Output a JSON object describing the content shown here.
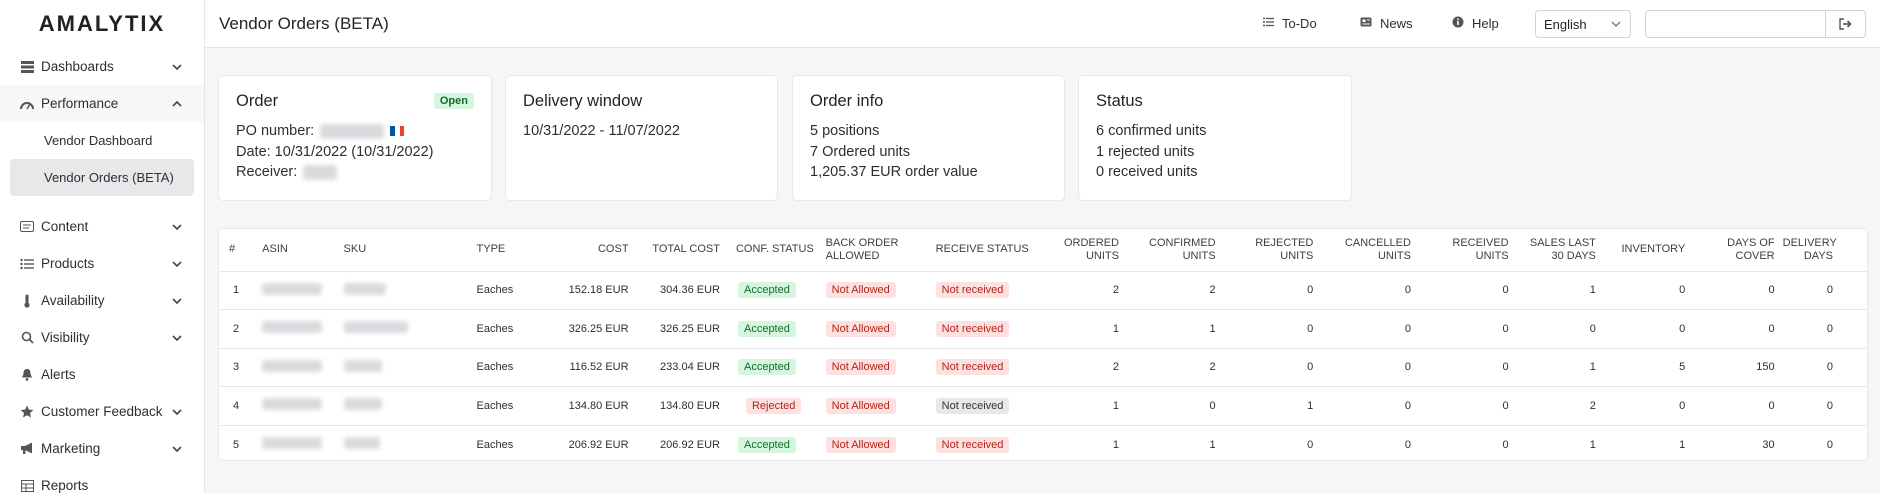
{
  "app": {
    "logo": "AMALYTIX"
  },
  "sidebar": {
    "items": [
      {
        "label": "Dashboards",
        "icon": "dashboard-icon",
        "expandable": true
      },
      {
        "label": "Performance",
        "icon": "gauge-icon",
        "expandable": true,
        "expanded": true,
        "children": [
          {
            "label": "Vendor Dashboard"
          },
          {
            "label": "Vendor Orders (BETA)",
            "active": true
          }
        ]
      },
      {
        "label": "Content",
        "icon": "content-icon",
        "expandable": true
      },
      {
        "label": "Products",
        "icon": "list-icon",
        "expandable": true
      },
      {
        "label": "Availability",
        "icon": "thermometer-icon",
        "expandable": true
      },
      {
        "label": "Visibility",
        "icon": "search-icon",
        "expandable": true
      },
      {
        "label": "Alerts",
        "icon": "bell-icon",
        "expandable": false
      },
      {
        "label": "Customer Feedback",
        "icon": "star-icon",
        "expandable": true
      },
      {
        "label": "Marketing",
        "icon": "megaphone-icon",
        "expandable": true
      },
      {
        "label": "Reports",
        "icon": "table-icon",
        "expandable": false
      }
    ]
  },
  "header": {
    "title": "Vendor Orders (BETA)",
    "todo_label": "To-Do",
    "news_label": "News",
    "help_label": "Help",
    "language": "English",
    "search_value": ""
  },
  "cards": {
    "order": {
      "title": "Order",
      "status": "Open",
      "po_label": "PO number:",
      "date_line": "Date: 10/31/2022 (10/31/2022)",
      "receiver_label": "Receiver:"
    },
    "delivery": {
      "title": "Delivery window",
      "window": "10/31/2022 - 11/07/2022"
    },
    "info": {
      "title": "Order info",
      "positions": "5 positions",
      "ordered": "7 Ordered units",
      "value": "1,205.37 EUR order value"
    },
    "status": {
      "title": "Status",
      "confirmed": "6 confirmed units",
      "rejected": "1 rejected units",
      "received": "0 received units"
    }
  },
  "table": {
    "headers": [
      "#",
      "ASIN",
      "SKU",
      "TYPE",
      "COST",
      "TOTAL COST",
      "CONF. STATUS",
      "BACK ORDER ALLOWED",
      "RECEIVE STATUS",
      "ORDERED UNITS",
      "CONFIRMED UNITS",
      "REJECTED UNITS",
      "CANCELLED UNITS",
      "RECEIVED UNITS",
      "SALES LAST 30 DAYS",
      "INVENTORY",
      "DAYS OF COVER",
      "DELIVERY DAYS"
    ],
    "rows": [
      {
        "n": "1",
        "type": "Eaches",
        "cost": "152.18 EUR",
        "total": "304.36 EUR",
        "conf": "Accepted",
        "back": "Not Allowed",
        "recv": "Not received",
        "ordered": "2",
        "confirmed": "2",
        "rejected": "0",
        "cancelled": "0",
        "received": "0",
        "sales": "1",
        "inventory": "0",
        "cover": "0",
        "delivery": "0"
      },
      {
        "n": "2",
        "type": "Eaches",
        "cost": "326.25 EUR",
        "total": "326.25 EUR",
        "conf": "Accepted",
        "back": "Not Allowed",
        "recv": "Not received",
        "ordered": "1",
        "confirmed": "1",
        "rejected": "0",
        "cancelled": "0",
        "received": "0",
        "sales": "0",
        "inventory": "0",
        "cover": "0",
        "delivery": "0"
      },
      {
        "n": "3",
        "type": "Eaches",
        "cost": "116.52 EUR",
        "total": "233.04 EUR",
        "conf": "Accepted",
        "back": "Not Allowed",
        "recv": "Not received",
        "ordered": "2",
        "confirmed": "2",
        "rejected": "0",
        "cancelled": "0",
        "received": "0",
        "sales": "1",
        "inventory": "5",
        "cover": "150",
        "delivery": "0"
      },
      {
        "n": "4",
        "type": "Eaches",
        "cost": "134.80 EUR",
        "total": "134.80 EUR",
        "conf": "Rejected",
        "back": "Not Allowed",
        "recv": "Not received",
        "ordered": "1",
        "confirmed": "0",
        "rejected": "1",
        "cancelled": "0",
        "received": "0",
        "sales": "2",
        "inventory": "0",
        "cover": "0",
        "delivery": "0"
      },
      {
        "n": "5",
        "type": "Eaches",
        "cost": "206.92 EUR",
        "total": "206.92 EUR",
        "conf": "Accepted",
        "back": "Not Allowed",
        "recv": "Not received",
        "ordered": "1",
        "confirmed": "1",
        "rejected": "0",
        "cancelled": "0",
        "received": "0",
        "sales": "1",
        "inventory": "1",
        "cover": "30",
        "delivery": "0"
      }
    ]
  },
  "colors": {
    "accepted_bg": "#d6f5df",
    "rejected_bg": "#fde1e1",
    "neutral_bg": "#e7e8ea"
  }
}
